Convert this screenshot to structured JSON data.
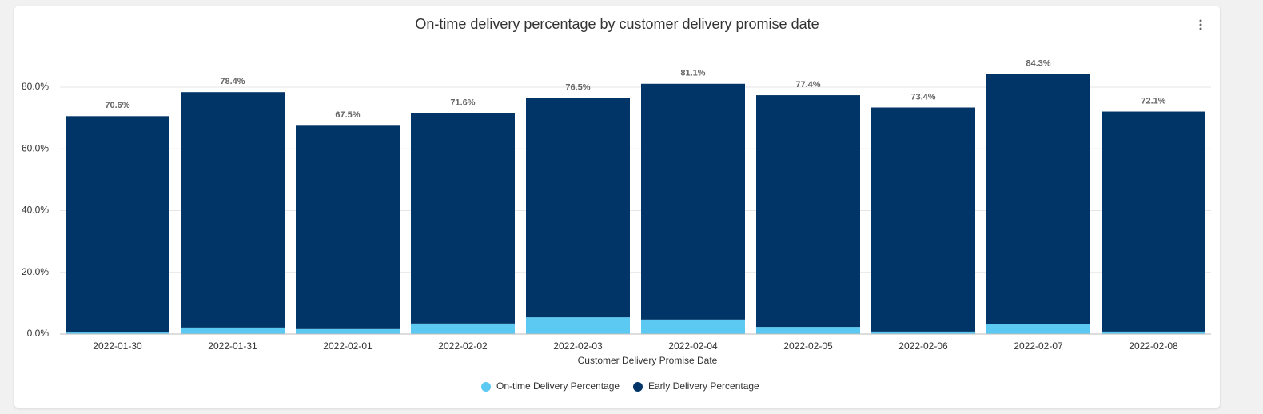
{
  "chart_data": {
    "type": "stacked-bar",
    "title": "On-time delivery percentage by customer delivery promise date",
    "x_label": "Customer Delivery Promise Date",
    "categories": [
      "2022-01-30",
      "2022-01-31",
      "2022-02-01",
      "2022-02-02",
      "2022-02-03",
      "2022-02-04",
      "2022-02-05",
      "2022-02-06",
      "2022-02-07",
      "2022-02-08"
    ],
    "series": [
      {
        "name": "On-time Delivery Percentage",
        "color": "#5bc9f1",
        "values": [
          0.5,
          2.1,
          1.6,
          3.4,
          5.4,
          4.7,
          2.3,
          0.8,
          3.1,
          0.8
        ]
      },
      {
        "name": "Early Delivery Percentage",
        "color": "#023567",
        "values": [
          70.1,
          76.3,
          65.9,
          68.2,
          71.1,
          76.4,
          75.1,
          72.6,
          81.2,
          71.3
        ]
      }
    ],
    "total_labels": [
      "70.6%",
      "78.4%",
      "67.5%",
      "71.6%",
      "76.5%",
      "81.1%",
      "77.4%",
      "73.4%",
      "84.3%",
      "72.1%"
    ],
    "ylim": [
      0,
      90
    ],
    "yticks": [
      {
        "value": 0,
        "label": "0.0%"
      },
      {
        "value": 20,
        "label": "20.0%"
      },
      {
        "value": 40,
        "label": "40.0%"
      },
      {
        "value": 60,
        "label": "60.0%"
      },
      {
        "value": 80,
        "label": "80.0%"
      }
    ],
    "grid": true,
    "legend": "bottom"
  }
}
